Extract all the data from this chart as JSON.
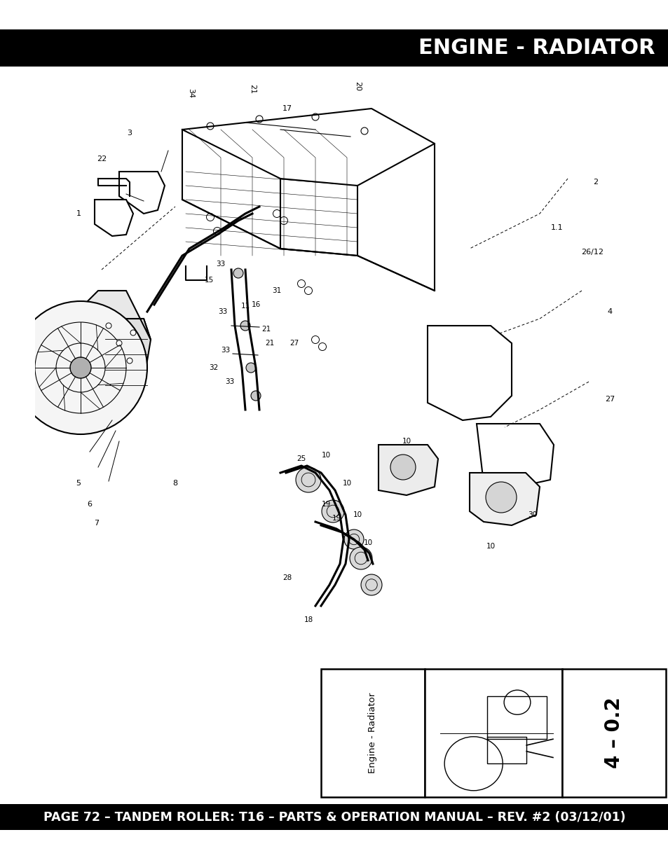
{
  "title": "ENGINE - RADIATOR",
  "footer_text": "PAGE 72 – TANDEM ROLLER: T16 – PARTS & OPERATION MANUAL – REV. #2 (03/12/01)",
  "header_bg": "#000000",
  "header_text_color": "#ffffff",
  "footer_bg": "#000000",
  "footer_text_color": "#ffffff",
  "page_bg": "#ffffff",
  "title_fontsize": 22,
  "footer_fontsize": 12.5,
  "sidebar_label": "Engine - Radiator",
  "sidebar_code": "4 – 0.2",
  "fig_width": 9.54,
  "fig_height": 12.35,
  "dpi": 100
}
